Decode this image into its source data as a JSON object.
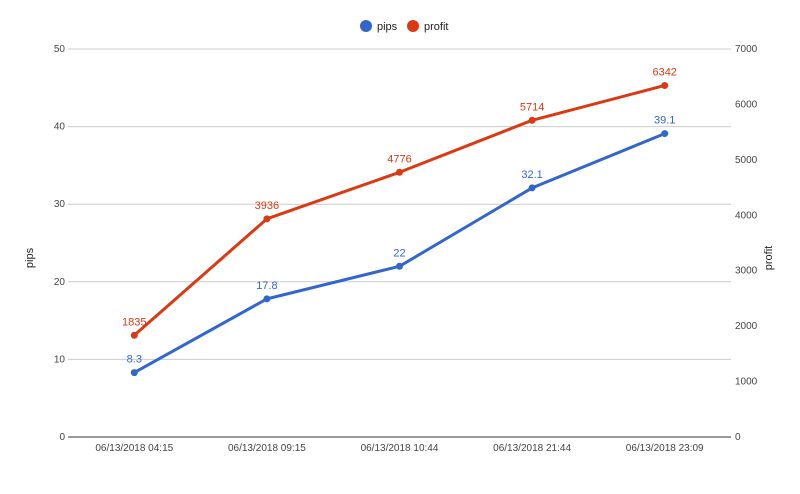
{
  "chart_data": {
    "type": "line",
    "categories": [
      "06/13/2018 04:15",
      "06/13/2018 09:15",
      "06/13/2018 10:44",
      "06/13/2018 21:44",
      "06/13/2018 23:09"
    ],
    "series": [
      {
        "name": "pips",
        "axis": "left",
        "color": "#3366cc",
        "values": [
          8.3,
          17.8,
          22,
          32.1,
          39.1
        ],
        "labels": [
          "8.3",
          "17.8",
          "22",
          "32.1",
          "39.1"
        ]
      },
      {
        "name": "profit",
        "axis": "right",
        "color": "#dc3912",
        "values": [
          1835,
          3936,
          4776,
          5714,
          6342
        ],
        "labels": [
          "1835",
          "3936",
          "4776",
          "5714",
          "6342"
        ]
      }
    ],
    "y_left": {
      "label": "pips",
      "min": 0,
      "max": 50,
      "ticks": [
        "0",
        "10",
        "20",
        "30",
        "40",
        "50"
      ]
    },
    "y_right": {
      "label": "profit",
      "min": 0,
      "max": 7000,
      "ticks": [
        "0",
        "1000",
        "2000",
        "3000",
        "4000",
        "5000",
        "6000",
        "7000"
      ]
    },
    "legend": {
      "position": "top"
    },
    "grid": true
  }
}
